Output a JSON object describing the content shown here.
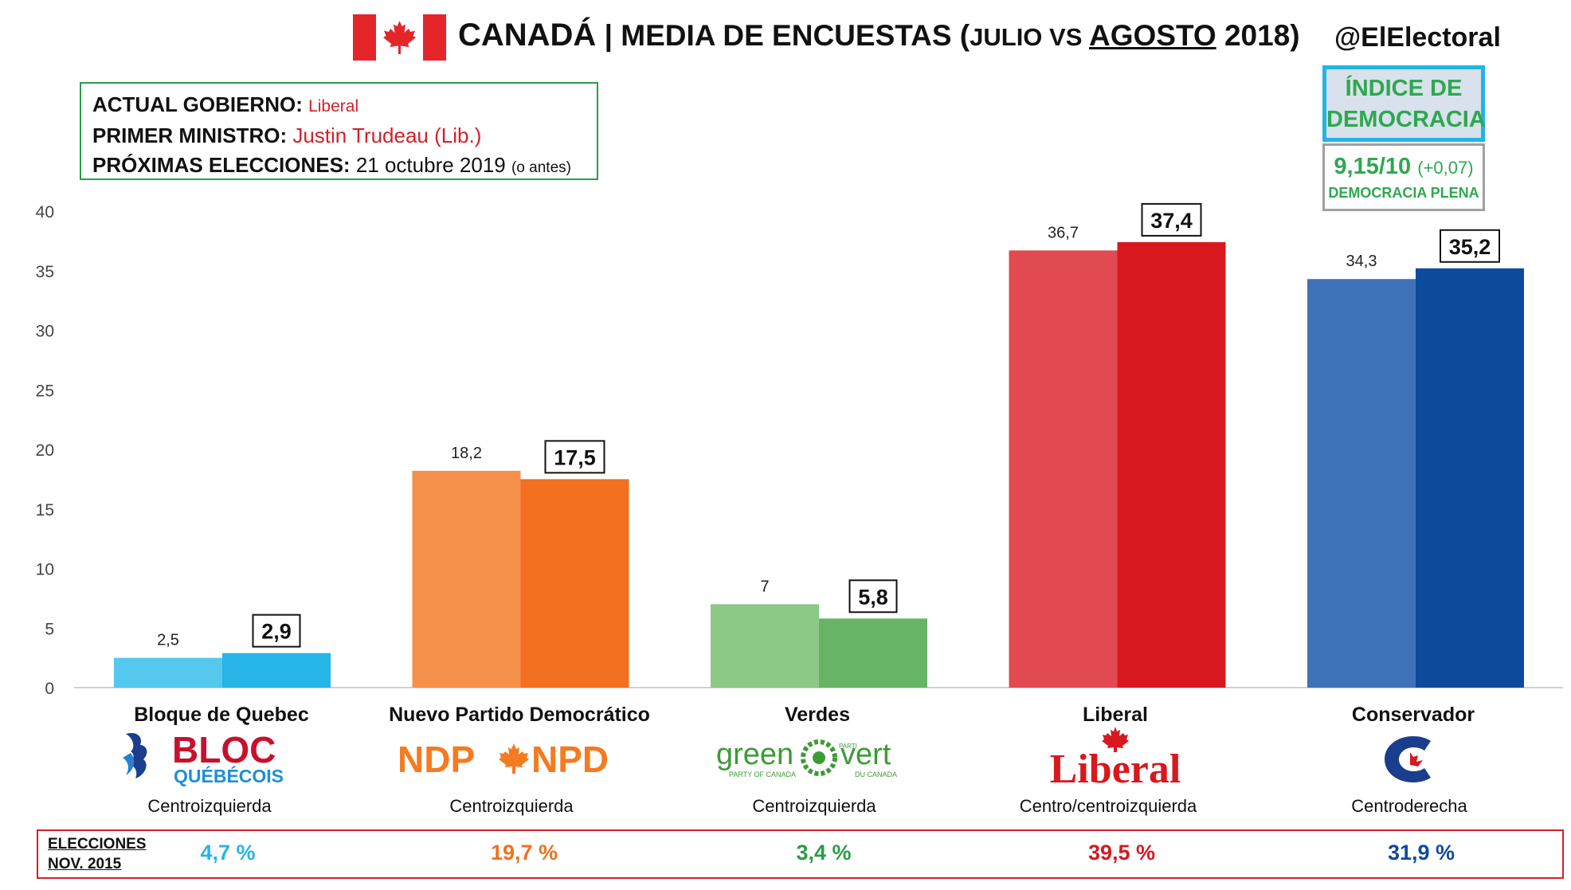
{
  "header": {
    "title_country": "CANADÁ",
    "title_sep": " | ",
    "title_main": "MEDIA DE ENCUESTAS ",
    "title_paren_open": "(",
    "title_julio_vs": "JULIO VS ",
    "title_agosto": "AGOSTO",
    "title_year": " 2018)",
    "handle": "@ElElectoral"
  },
  "info": {
    "gov_label": "ACTUAL GOBIERNO: ",
    "gov_value": "Liberal",
    "pm_label": "PRIMER MINISTRO: ",
    "pm_value": "Justin Trudeau (Lib.)",
    "elections_label": "PRÓXIMAS ELECCIONES: ",
    "elections_value": "21 octubre 2019 ",
    "elections_note": "(o antes)"
  },
  "democracy": {
    "title": "ÍNDICE DE DEMOCRACIA",
    "score": "9,15/10",
    "delta": "(+0,07)",
    "label": "DEMOCRACIA PLENA"
  },
  "chart_data": {
    "type": "bar",
    "categories": [
      "Bloque de Quebec",
      "Nuevo Partido Democrático",
      "Verdes",
      "Liberal",
      "Conservador"
    ],
    "series": [
      {
        "values": [
          2.5,
          18.2,
          7,
          36.7,
          34.3
        ]
      },
      {
        "values": [
          2.9,
          17.5,
          5.8,
          37.4,
          35.2
        ]
      }
    ],
    "value_labels_july": [
      "2,5",
      "18,2",
      "7",
      "36,7",
      "34,3"
    ],
    "value_labels_august": [
      "2,9",
      "17,5",
      "5,8",
      "37,4",
      "35,2"
    ],
    "ylim": [
      0,
      40
    ],
    "yticks": [
      "0",
      "5",
      "10",
      "15",
      "20",
      "25",
      "30",
      "35",
      "40"
    ],
    "colors_july": [
      "#55c8ee",
      "#f5914a",
      "#8cc886",
      "#e04a50",
      "#3f72b8"
    ],
    "colors_august": [
      "#27b4e6",
      "#f27020",
      "#67b466",
      "#d7191f",
      "#0d4a9c"
    ],
    "grid": false
  },
  "parties": [
    {
      "name": "Bloque de Quebec",
      "ideology": "Centroizquierda",
      "logo": "bloc-quebecois-logo",
      "logo_text": [
        "BLOC",
        "QUÉBÉCOIS"
      ]
    },
    {
      "name": "Nuevo Partido Democrático",
      "ideology": "Centroizquierda",
      "logo": "ndp-npd-logo",
      "logo_text": [
        "NDP",
        "NPD"
      ]
    },
    {
      "name": "Verdes",
      "ideology": "Centroizquierda",
      "logo": "green-party-logo",
      "logo_text": [
        "green",
        "vert",
        "PARTY OF CANADA",
        "DU CANADA",
        "PARTI"
      ]
    },
    {
      "name": "Liberal",
      "ideology": "Centro/centroizquierda",
      "logo": "liberal-logo",
      "logo_text": [
        "Liberal"
      ]
    },
    {
      "name": "Conservador",
      "ideology": "Centroderecha",
      "logo": "conservative-logo",
      "logo_text": []
    }
  ],
  "elections_2015": {
    "label_line1": "ELECCIONES",
    "label_line2": "NOV. 2015",
    "values": [
      "4,7 %",
      "19,7 %",
      "3,4 %",
      "39,5 %",
      "31,9 %"
    ],
    "colors": [
      "#27b4e6",
      "#f27020",
      "#2a9d46",
      "#d7191f",
      "#0d4a9c"
    ]
  }
}
